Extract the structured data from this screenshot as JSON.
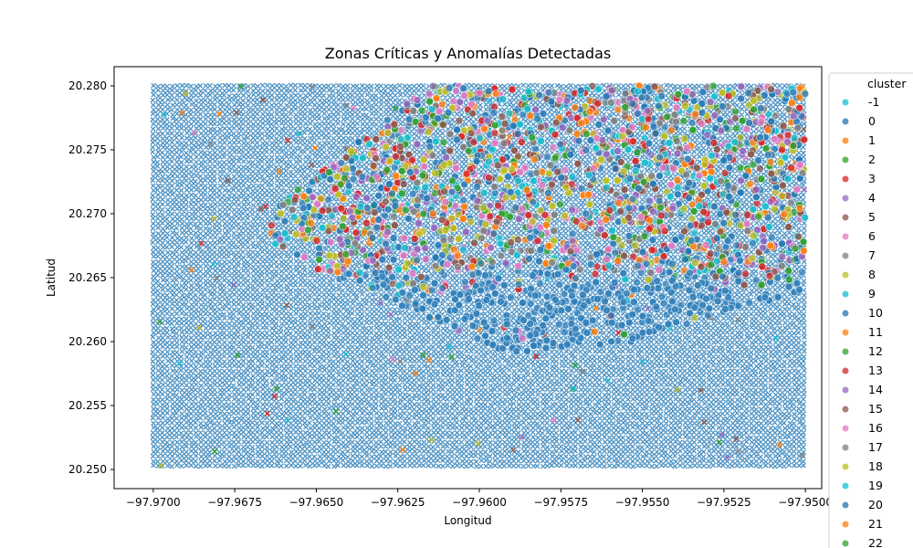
{
  "chart_data": {
    "type": "scatter",
    "title": "Zonas Críticas y Anomalías Detectadas",
    "xlabel": "Longitud",
    "ylabel": "Latitud",
    "xlim": [
      -97.9712,
      -97.9495
    ],
    "ylim": [
      20.2485,
      20.2815
    ],
    "x_ticks": [
      -97.97,
      -97.9675,
      -97.965,
      -97.9625,
      -97.96,
      -97.9575,
      -97.955,
      -97.9525,
      -97.95
    ],
    "x_tick_labels": [
      "−97.9700",
      "−97.9675",
      "−97.9650",
      "−97.9625",
      "−97.9600",
      "−97.9575",
      "−97.9550",
      "−97.9525",
      "−97.9500"
    ],
    "y_ticks": [
      20.25,
      20.255,
      20.26,
      20.265,
      20.27,
      20.275,
      20.28
    ],
    "y_tick_labels": [
      "20.250",
      "20.255",
      "20.260",
      "20.265",
      "20.270",
      "20.275",
      "20.280"
    ],
    "grid": false,
    "legend_title": "cluster",
    "legend_placement": "outside-right",
    "legend_entries": [
      "-1",
      "0",
      "1",
      "2",
      "3",
      "4",
      "5",
      "6",
      "7",
      "8",
      "9",
      "10",
      "11",
      "12",
      "13",
      "14",
      "15",
      "16",
      "17",
      "18",
      "19",
      "20",
      "21",
      "22"
    ],
    "palette": [
      "#1f77b4",
      "#ff7f0e",
      "#2ca02c",
      "#d62728",
      "#9467bd",
      "#8c564b",
      "#e377c2",
      "#7f7f7f",
      "#bcbd22",
      "#17becf"
    ],
    "regions": {
      "grid_points": {
        "marker": "x",
        "x_range": [
          -97.97,
          -97.95
        ],
        "y_range": [
          20.25,
          20.28
        ],
        "dominant_cluster": "-1"
      },
      "dense_zone": {
        "marker": "o",
        "x_range": [
          -97.9665,
          -97.95
        ],
        "y_range": [
          20.2585,
          20.28
        ],
        "lower_band_cluster": "9",
        "upper_mixed_clusters_from_y": 20.2655
      }
    }
  }
}
